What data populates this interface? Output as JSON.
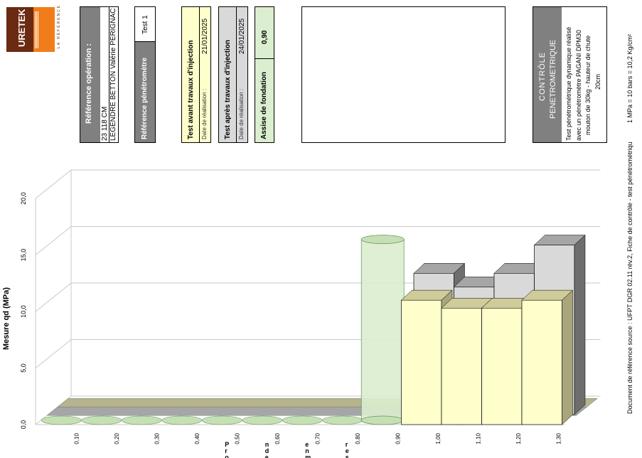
{
  "logo": {
    "brand": "URETEK",
    "tagline": "LA RÉFÉRENCE"
  },
  "header": {
    "operation_title": "Référence opération :",
    "operation_code": "23 118 CM",
    "operation_name": "LEGENDRE BETTON Valérie PERIGNAC",
    "penetrometer_label": "Référence pénétromètre",
    "penetrometer_value": "Test 1",
    "test_before_title": "Test avant travaux d'injection",
    "test_before_date_label": "Date de réalisation :",
    "test_before_date": "21/01/2025",
    "test_after_title": "Test après travaux d'injection",
    "test_after_date_label": "Date de réalisation :",
    "test_after_date": "24/01/2025",
    "foundation_label": "Assise de fondation",
    "foundation_value": "0,90",
    "control_title_1": "CONTRÔLE",
    "control_title_2": "PENETROMETRIQUE",
    "control_desc_1": "Test pénétrométrique dynamique réalisé",
    "control_desc_2": "avec un pénétromètre PAGANI DPM30",
    "control_desc_3": "mouton de 30kg - hauteur de chute",
    "control_desc_4": "20cm"
  },
  "footer": {
    "source": "Document de référence source : UFPT DGR 02.11 rév.2, Fiche de contrôle - test pénétrométriqu",
    "conversion": "1 MPa = 10 bars = 10,2 Kg/cm²"
  },
  "colors": {
    "before": "#ffffcc",
    "after": "#d9d9d9",
    "foundation": "#dbeed0",
    "dark_header": "#808080",
    "floor": "#b5b48c"
  },
  "chart_data": {
    "type": "bar",
    "ylabel": "Mesure qd (MPa)",
    "xlabel": "Profondeur en mètres",
    "ylim": [
      0,
      20
    ],
    "yticks": [
      "0,0",
      "5,0",
      "10,0",
      "15,0",
      "20,0"
    ],
    "categories": [
      "0,10",
      "0,20",
      "0,30",
      "0,40",
      "0,50",
      "0,60",
      "0,70",
      "0,80",
      "0,90",
      "1,00",
      "1,10",
      "1,20",
      "1,30"
    ],
    "series": [
      {
        "name": "Test avant travaux d'injection",
        "values": [
          0,
          0,
          0,
          0,
          0,
          0,
          0,
          0,
          0,
          11,
          10.3,
          10.3,
          11
        ]
      },
      {
        "name": "Test après travaux d'injection",
        "values": [
          0,
          0,
          0,
          0,
          0,
          0,
          0,
          0,
          0,
          12.5,
          11.3,
          12.5,
          15
        ]
      },
      {
        "name": "Assise de fondation",
        "values": [
          0,
          0,
          0,
          0,
          0,
          0,
          0,
          0,
          16,
          0,
          0,
          0,
          0
        ]
      }
    ],
    "grid": true
  }
}
